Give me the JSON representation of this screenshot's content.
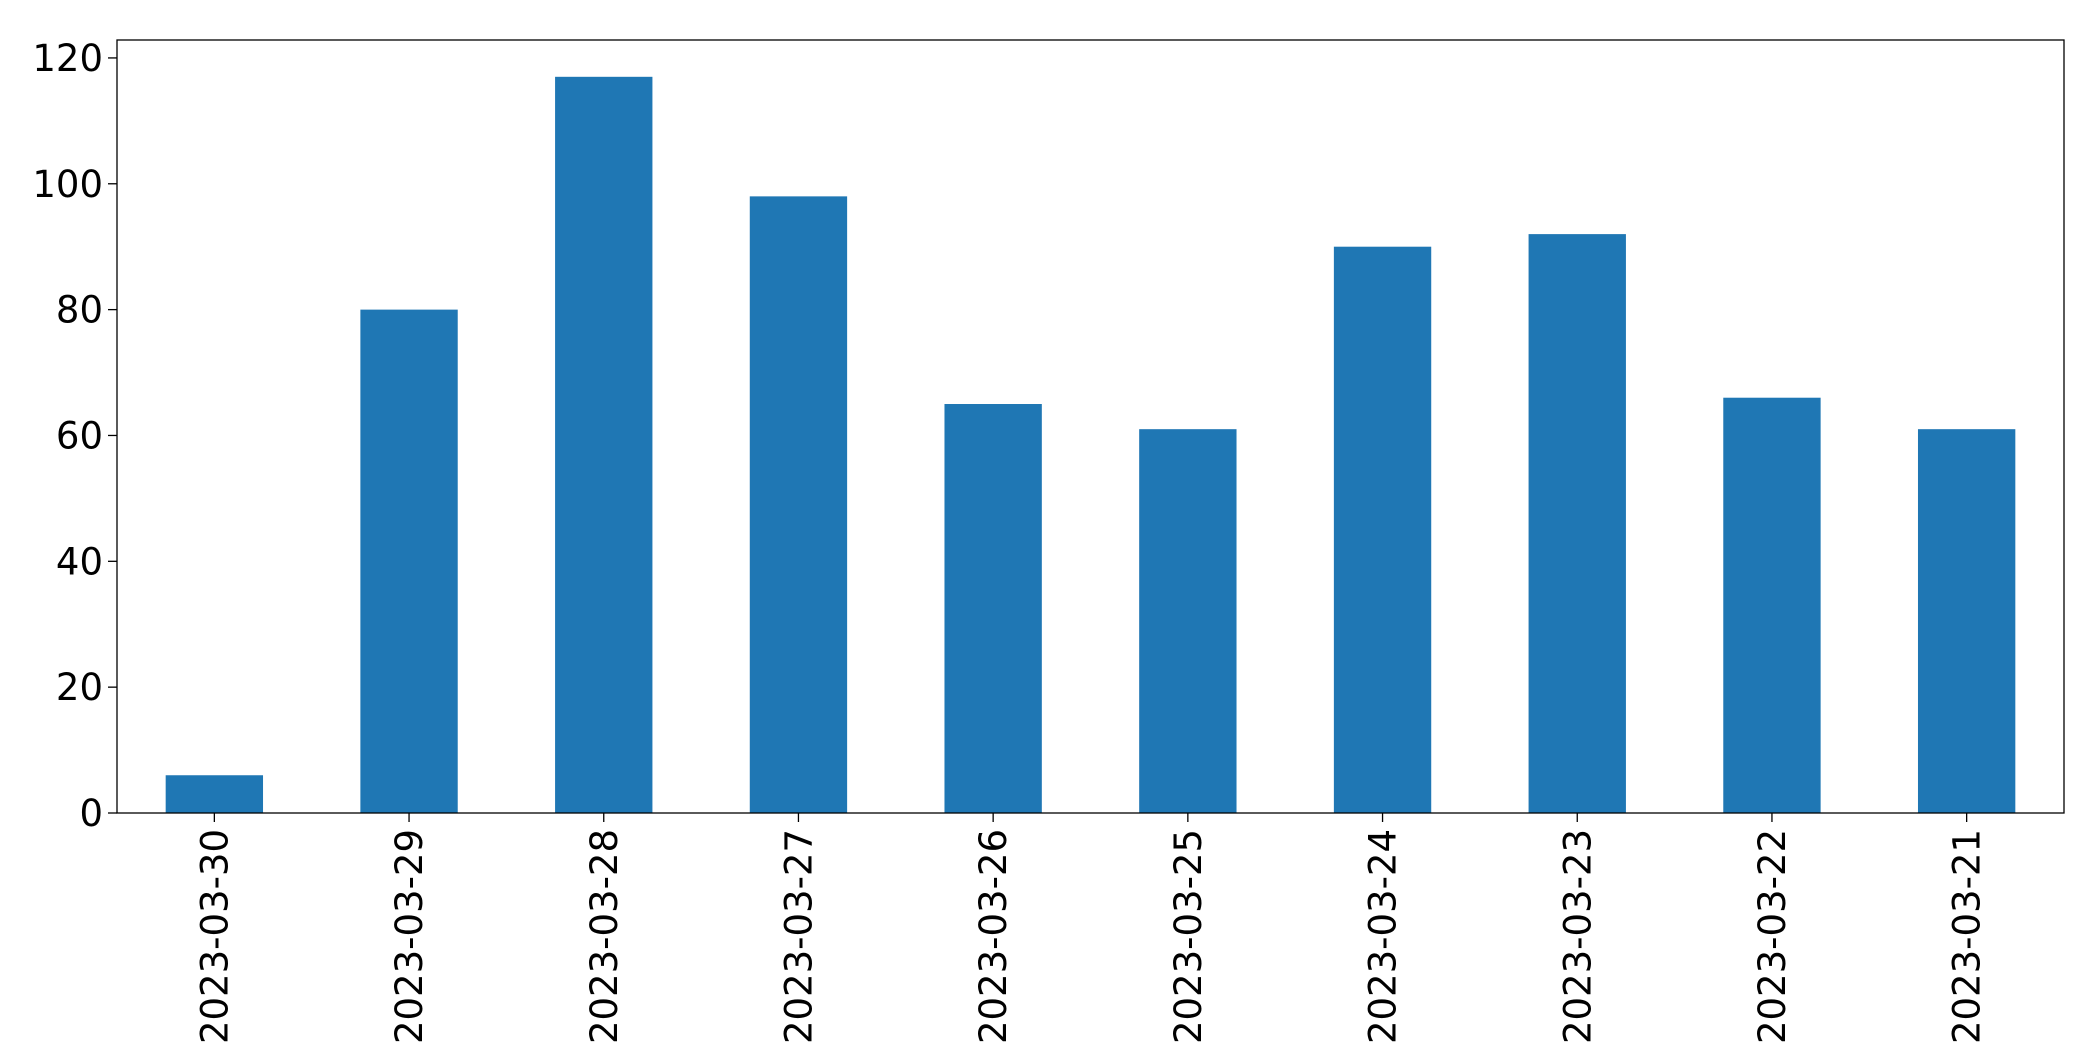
{
  "chart_data": {
    "type": "bar",
    "categories": [
      "2023-03-30",
      "2023-03-29",
      "2023-03-28",
      "2023-03-27",
      "2023-03-26",
      "2023-03-25",
      "2023-03-24",
      "2023-03-23",
      "2023-03-22",
      "2023-03-21"
    ],
    "values": [
      6,
      80,
      117,
      98,
      65,
      61,
      90,
      92,
      66,
      61
    ],
    "color": "#1f77b4",
    "ylim": [
      0,
      122.85
    ],
    "yticks": [
      0,
      20,
      40,
      60,
      80,
      100,
      120
    ],
    "grid": false
  }
}
